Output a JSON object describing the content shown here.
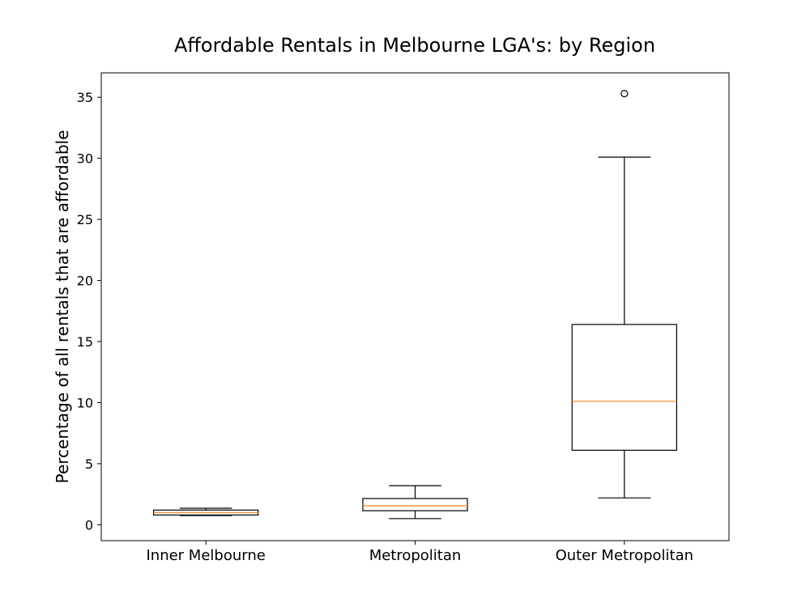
{
  "chart_data": {
    "type": "box",
    "title": "Affordable Rentals in Melbourne LGA's: by Region",
    "xlabel": "",
    "ylabel": "Percentage of all rentals that are affordable",
    "ylim": [
      -1.3,
      37
    ],
    "yticks": [
      0,
      5,
      10,
      15,
      20,
      25,
      30,
      35
    ],
    "grid": false,
    "categories": [
      "Inner Melbourne",
      "Metropolitan",
      "Outer Metropolitan"
    ],
    "boxes": [
      {
        "category": "Inner Melbourne",
        "whisker_low": 0.75,
        "q1": 0.8,
        "median": 1.0,
        "q3": 1.2,
        "whisker_high": 1.35,
        "outliers": []
      },
      {
        "category": "Metropolitan",
        "whisker_low": 0.5,
        "q1": 1.15,
        "median": 1.55,
        "q3": 2.15,
        "whisker_high": 3.2,
        "outliers": []
      },
      {
        "category": "Outer Metropolitan",
        "whisker_low": 2.2,
        "q1": 6.1,
        "median": 10.1,
        "q3": 16.4,
        "whisker_high": 30.1,
        "outliers": [
          35.3
        ]
      }
    ],
    "colors": {
      "box": "#000000",
      "median": "#ff7f0e",
      "outlier": "#000000"
    }
  }
}
